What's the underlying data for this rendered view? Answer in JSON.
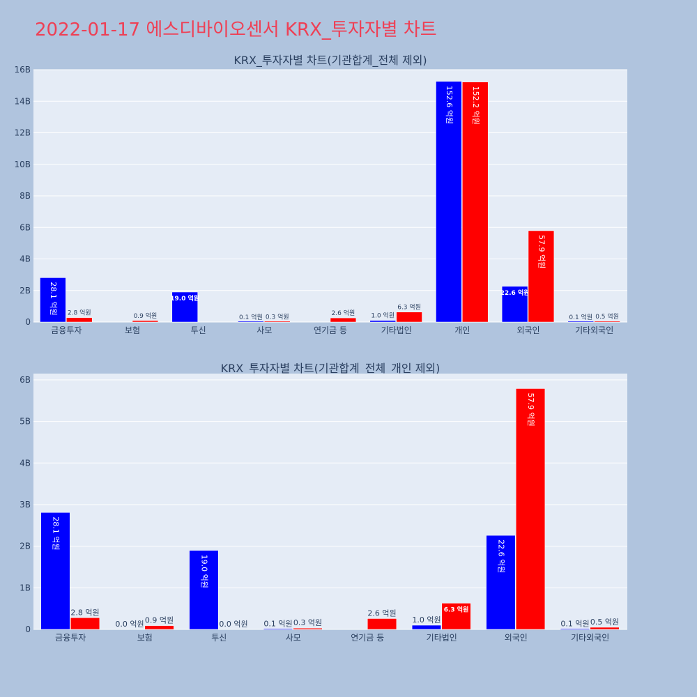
{
  "page": {
    "title": "2022-01-17 에스디바이오센서 KRX_투자자별 차트"
  },
  "colors": {
    "series1": "#0000ff",
    "series2": "#ff0000",
    "plot_bg": "#e5ecf6",
    "page_bg": "#b0c4de"
  },
  "chart_data": [
    {
      "type": "bar",
      "title": "KRX_투자자별 차트(기관합계_전체 제외)",
      "categories": [
        "금융투자",
        "보험",
        "투신",
        "사모",
        "연기금 등",
        "기타법인",
        "개인",
        "외국인",
        "기타외국인"
      ],
      "series": [
        {
          "color": "#0000ff",
          "values": [
            2.81,
            0.0,
            1.9,
            0.01,
            0.0,
            0.1,
            15.26,
            2.26,
            0.01
          ],
          "labels": [
            "28.1 억원",
            "",
            "19.0 억원",
            "0.1 억원",
            "",
            "1.0 억원",
            "152.6 억원",
            "22.6 억원",
            "0.1 억원"
          ]
        },
        {
          "color": "#ff0000",
          "values": [
            0.28,
            0.09,
            0.0,
            0.03,
            0.26,
            0.63,
            15.22,
            5.79,
            0.05
          ],
          "labels": [
            "2.8 억원",
            "0.9 억원",
            "",
            "0.3 억원",
            "2.6 억원",
            "6.3 억원",
            "152.2 억원",
            "57.9 억원",
            "0.5 억원"
          ]
        }
      ],
      "ylim": [
        0,
        16
      ],
      "yticks": [
        0,
        2,
        4,
        6,
        8,
        10,
        12,
        14,
        16
      ],
      "ytick_labels": [
        "0",
        "2B",
        "4B",
        "6B",
        "8B",
        "10B",
        "12B",
        "14B",
        "16B"
      ],
      "grid": true
    },
    {
      "type": "bar",
      "title": "KRX_투자자별 차트(기관합계_전체_개인 제외)",
      "categories": [
        "금융투자",
        "보험",
        "투신",
        "사모",
        "연기금 등",
        "기타법인",
        "외국인",
        "기타외국인"
      ],
      "series": [
        {
          "color": "#0000ff",
          "values": [
            2.81,
            0.0,
            1.9,
            0.01,
            0.0,
            0.1,
            2.26,
            0.01
          ],
          "labels": [
            "28.1 억원",
            "0.0 억원",
            "19.0 억원",
            "0.1 억원",
            "",
            "1.0 억원",
            "22.6 억원",
            "0.1 억원"
          ]
        },
        {
          "color": "#ff0000",
          "values": [
            0.28,
            0.09,
            0.0,
            0.03,
            0.26,
            0.63,
            5.79,
            0.05
          ],
          "labels": [
            "2.8 억원",
            "0.9 억원",
            "0.0 억원",
            "0.3 억원",
            "2.6 억원",
            "6.3 억원",
            "57.9 억원",
            "0.5 억원"
          ]
        }
      ],
      "ylim": [
        0,
        6.15
      ],
      "yticks": [
        0,
        1,
        2,
        3,
        4,
        5,
        6
      ],
      "ytick_labels": [
        "0",
        "1B",
        "2B",
        "3B",
        "4B",
        "5B",
        "6B"
      ],
      "grid": true
    }
  ]
}
